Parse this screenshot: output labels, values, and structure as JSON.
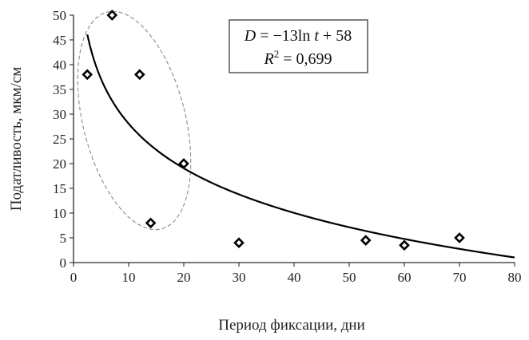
{
  "chart_data": {
    "type": "scatter",
    "title": "",
    "xlabel": "Период  фиксации, дни",
    "ylabel": "Податливость, мкм/см",
    "xlim": [
      0,
      80
    ],
    "ylim": [
      0,
      50
    ],
    "x_ticks": [
      "0",
      "10",
      "20",
      "30",
      "40",
      "50",
      "60",
      "70",
      "80"
    ],
    "y_ticks": [
      "0",
      "5",
      "10",
      "15",
      "20",
      "25",
      "30",
      "35",
      "40",
      "45",
      "50"
    ],
    "grid": false,
    "points": [
      {
        "x": 2.5,
        "y": 38
      },
      {
        "x": 7,
        "y": 50
      },
      {
        "x": 12,
        "y": 38
      },
      {
        "x": 14,
        "y": 8
      },
      {
        "x": 20,
        "y": 20
      },
      {
        "x": 30,
        "y": 4
      },
      {
        "x": 53,
        "y": 4.5
      },
      {
        "x": 60,
        "y": 3.5
      },
      {
        "x": 70,
        "y": 5
      }
    ],
    "trendline": {
      "type": "logarithmic",
      "a": -13,
      "b": 58,
      "x_range": [
        2.5,
        80
      ],
      "equation": {
        "lhs": "D",
        "rhs_prefix": " = −13ln ",
        "var": "t",
        "rhs_suffix": " + 58"
      },
      "r2": {
        "lhs": "R",
        "sup": "2",
        "rhs": " = 0,699"
      }
    },
    "highlight_ellipse": {
      "style": "dashed",
      "encloses_points": [
        0,
        1,
        2,
        3,
        4
      ]
    }
  }
}
